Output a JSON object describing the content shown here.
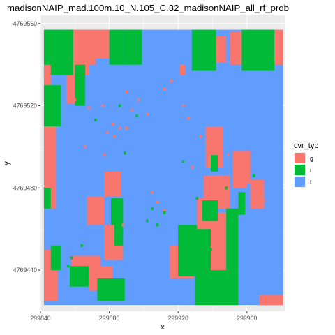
{
  "chart_data": {
    "type": "heatmap",
    "title": "madisonNAIP_mad.100m.10_N.105_C.32_madisonNAIP_all_rf_prob",
    "xlabel": "x",
    "ylabel": "y",
    "xlim": [
      299840,
      299982
    ],
    "ylim": [
      4769420,
      4769564
    ],
    "data_extent": {
      "x": [
        299842,
        299981
      ],
      "y": [
        4769423,
        4769557
      ]
    },
    "xticks": [
      299840,
      299880,
      299920,
      299960
    ],
    "yticks": [
      4769440,
      4769480,
      4769520,
      4769560
    ],
    "xtick_labels": [
      "299840",
      "299880",
      "299920",
      "299960"
    ],
    "ytick_labels": [
      "4769440",
      "4769480",
      "4769520",
      "4769560"
    ],
    "grid": true,
    "legend": {
      "title": "cvr_typ",
      "placement": "right",
      "entries": [
        {
          "label": "g",
          "color": "#F8766D"
        },
        {
          "label": "i",
          "color": "#00BA38"
        },
        {
          "label": "t",
          "color": "#619CFF"
        }
      ]
    },
    "background_class": "t",
    "regions": [
      {
        "class": "g",
        "x": [
          299855,
          299862
        ],
        "y": [
          4769521,
          4769557
        ]
      },
      {
        "class": "g",
        "x": [
          299860,
          299868
        ],
        "y": [
          4769535,
          4769557
        ]
      },
      {
        "class": "i",
        "x": [
          299860,
          299866
        ],
        "y": [
          4769520,
          4769540
        ]
      },
      {
        "class": "i",
        "x": [
          299842,
          299859
        ],
        "y": [
          4769535,
          4769557
        ]
      },
      {
        "class": "g",
        "x": [
          299842,
          299846
        ],
        "y": [
          4769528,
          4769540
        ]
      },
      {
        "class": "i",
        "x": [
          299842,
          299852
        ],
        "y": [
          4769510,
          4769530
        ]
      },
      {
        "class": "g",
        "x": [
          299842,
          299849
        ],
        "y": [
          4769470,
          4769510
        ]
      },
      {
        "class": "i",
        "x": [
          299842,
          299846
        ],
        "y": [
          4769470,
          4769480
        ]
      },
      {
        "class": "g",
        "x": [
          299842,
          299850
        ],
        "y": [
          4769425,
          4769450
        ]
      },
      {
        "class": "i",
        "x": [
          299846,
          299852
        ],
        "y": [
          4769440,
          4769452
        ]
      },
      {
        "class": "g",
        "x": [
          299868,
          299880
        ],
        "y": [
          4769543,
          4769557
        ]
      },
      {
        "class": "i",
        "x": [
          299880,
          299888
        ],
        "y": [
          4769540,
          4769557
        ]
      },
      {
        "class": "i",
        "x": [
          299888,
          299899
        ],
        "y": [
          4769540,
          4769557
        ]
      },
      {
        "class": "g",
        "x": [
          299867,
          299872
        ],
        "y": [
          4769540,
          4769548
        ]
      },
      {
        "class": "i",
        "x": [
          299928,
          299942
        ],
        "y": [
          4769537,
          4769557
        ]
      },
      {
        "class": "g",
        "x": [
          299942,
          299948
        ],
        "y": [
          4769541,
          4769554
        ]
      },
      {
        "class": "g",
        "x": [
          299950,
          299957
        ],
        "y": [
          4769540,
          4769556
        ]
      },
      {
        "class": "i",
        "x": [
          299957,
          299976
        ],
        "y": [
          4769537,
          4769557
        ]
      },
      {
        "class": "g",
        "x": [
          299976,
          299981
        ],
        "y": [
          4769540,
          4769557
        ]
      },
      {
        "class": "g",
        "x": [
          299921,
          299924
        ],
        "y": [
          4769535,
          4769540
        ]
      },
      {
        "class": "g",
        "x": [
          299936,
          299946
        ],
        "y": [
          4769490,
          4769510
        ]
      },
      {
        "class": "i",
        "x": [
          299939,
          299943
        ],
        "y": [
          4769488,
          4769496
        ]
      },
      {
        "class": "g",
        "x": [
          299952,
          299962
        ],
        "y": [
          4769482,
          4769498
        ]
      },
      {
        "class": "g",
        "x": [
          299962,
          299970
        ],
        "y": [
          4769470,
          4769484
        ]
      },
      {
        "class": "i",
        "x": [
          299955,
          299959
        ],
        "y": [
          4769467,
          4769478
        ]
      },
      {
        "class": "g",
        "x": [
          299952,
          299960
        ],
        "y": [
          4769480,
          4769486
        ]
      },
      {
        "class": "g",
        "x": [
          299935,
          299950
        ],
        "y": [
          4769470,
          4769486
        ]
      },
      {
        "class": "g",
        "x": [
          299915,
          299929
        ],
        "y": [
          4769436,
          4769452
        ]
      },
      {
        "class": "i",
        "x": [
          299920,
          299940
        ],
        "y": [
          4769437,
          4769462
        ]
      },
      {
        "class": "g",
        "x": [
          299939,
          299948
        ],
        "y": [
          4769440,
          4769468
        ]
      },
      {
        "class": "i",
        "x": [
          299948,
          299955
        ],
        "y": [
          4769440,
          4769470
        ]
      },
      {
        "class": "g",
        "x": [
          299931,
          299943
        ],
        "y": [
          4769460,
          4769475
        ]
      },
      {
        "class": "i",
        "x": [
          299934,
          299943
        ],
        "y": [
          4769464,
          4769474
        ]
      },
      {
        "class": "i",
        "x": [
          299930,
          299955
        ],
        "y": [
          4769423,
          4769440
        ]
      },
      {
        "class": "g",
        "x": [
          299967,
          299981
        ],
        "y": [
          4769423,
          4769428
        ]
      },
      {
        "class": "g",
        "x": [
          299877,
          299887
        ],
        "y": [
          4769476,
          4769488
        ]
      },
      {
        "class": "g",
        "x": [
          299867,
          299877
        ],
        "y": [
          4769462,
          4769476
        ]
      },
      {
        "class": "i",
        "x": [
          299881,
          299888
        ],
        "y": [
          4769447,
          4769475
        ]
      },
      {
        "class": "g",
        "x": [
          299877,
          299883
        ],
        "y": [
          4769445,
          4769462
        ]
      },
      {
        "class": "g",
        "x": [
          299858,
          299875
        ],
        "y": [
          4769440,
          4769447
        ]
      },
      {
        "class": "i",
        "x": [
          299857,
          299868
        ],
        "y": [
          4769432,
          4769442
        ]
      },
      {
        "class": "g",
        "x": [
          299868,
          299882
        ],
        "y": [
          4769430,
          4769442
        ]
      },
      {
        "class": "i",
        "x": [
          299873,
          299889
        ],
        "y": [
          4769425,
          4769436
        ]
      },
      {
        "class": "g",
        "x": [
          299882,
          299888
        ],
        "y": [
          4769445,
          4769452
        ]
      }
    ],
    "points": [
      {
        "class": "g",
        "x": [
          299860,
          299868,
          299876,
          299879,
          299882,
          299886,
          299890,
          299893,
          299897,
          299902,
          299912,
          299916,
          299923,
          299926,
          299866,
          299877,
          299883,
          299890,
          299933,
          299949,
          299955,
          299963,
          299970,
          299928,
          299905,
          299908,
          299912,
          299888,
          299868
        ],
        "y": [
          4769523,
          4769519,
          4769520,
          4769507,
          4769511,
          4769509,
          4769527,
          4769518,
          4769523,
          4769516,
          4769528,
          4769532,
          4769520,
          4769514,
          4769500,
          4769496,
          4769505,
          4769509,
          4769505,
          4769496,
          4769488,
          4769479,
          4769474,
          4769490,
          4769478,
          4769473,
          4769469,
          4769462,
          4769469
        ]
      },
      {
        "class": "i",
        "x": [
          299872,
          299886,
          299889,
          299896,
          299908,
          299931,
          299948,
          299964,
          299939,
          299923,
          299902,
          299864,
          299858,
          299856,
          299905,
          299912
        ],
        "y": [
          4769513,
          4769520,
          4769497,
          4769515,
          4769462,
          4769475,
          4769480,
          4769486,
          4769450,
          4769493,
          4769464,
          4769452,
          4769446,
          4769442,
          4769470,
          4769468
        ]
      }
    ]
  }
}
